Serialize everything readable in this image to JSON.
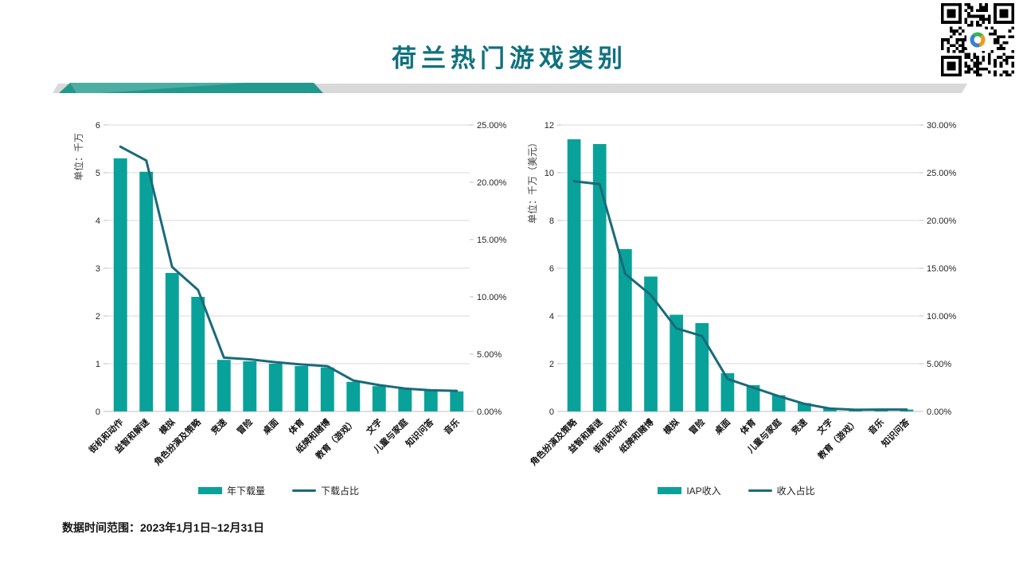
{
  "title": "荷兰热门游戏类别",
  "footer": "数据时间范围：2023年1月1日~12月31日",
  "colors": {
    "bar_teal": "#09a29a",
    "line_teal": "#196a7a",
    "title_teal": "#10717f",
    "band_teal": "#21998c",
    "band_gray": "#d9d9d9",
    "grid_gray": "#d9d9d9",
    "axis_gray": "#bfbfbf",
    "qr_logo_green": "#35b558",
    "qr_logo_orange": "#f0991e",
    "qr_logo_blue": "#3b7fd6"
  },
  "chart_data": [
    {
      "type": "bar",
      "name": "annual-downloads",
      "unit_label": "单位：千万",
      "categories": [
        "街机和动作",
        "益智和解谜",
        "模拟",
        "角色扮演及策略",
        "竞速",
        "冒险",
        "桌面",
        "体育",
        "纸牌和赌博",
        "教育（游戏）",
        "文字",
        "儿童与家庭",
        "知识问答",
        "音乐"
      ],
      "series": [
        {
          "name": "年下载量",
          "type": "bar",
          "axis": "left",
          "values": [
            5.3,
            5.02,
            2.9,
            2.4,
            1.08,
            1.05,
            1.0,
            0.95,
            0.92,
            0.62,
            0.53,
            0.48,
            0.44,
            0.42
          ]
        },
        {
          "name": "下载占比",
          "type": "line",
          "axis": "right",
          "values": [
            23.1,
            21.9,
            12.6,
            10.6,
            4.7,
            4.55,
            4.3,
            4.1,
            3.95,
            2.7,
            2.3,
            2.0,
            1.85,
            1.8
          ]
        }
      ],
      "left_axis": {
        "min": 0,
        "max": 6,
        "step": 1
      },
      "right_axis": {
        "min": 0,
        "max": 25,
        "step": 5,
        "format": "percent"
      },
      "legend_position": "bottom",
      "grid": true
    },
    {
      "type": "bar",
      "name": "iap-revenue",
      "unit_label": "单位：千万（美元）",
      "categories": [
        "角色扮演及策略",
        "益智和解谜",
        "街机和动作",
        "纸牌和赌博",
        "模拟",
        "冒险",
        "桌面",
        "体育",
        "儿童与家庭",
        "竞速",
        "文字",
        "教育（游戏）",
        "音乐",
        "知识问答"
      ],
      "series": [
        {
          "name": "IAP收入",
          "type": "bar",
          "axis": "left",
          "values": [
            11.4,
            11.2,
            6.8,
            5.65,
            4.05,
            3.7,
            1.6,
            1.1,
            0.68,
            0.35,
            0.12,
            0.08,
            0.1,
            0.08
          ]
        },
        {
          "name": "收入占比",
          "type": "line",
          "axis": "right",
          "values": [
            24.1,
            23.8,
            14.4,
            12.2,
            8.7,
            7.9,
            3.4,
            2.5,
            1.6,
            0.8,
            0.3,
            0.18,
            0.2,
            0.2
          ]
        }
      ],
      "left_axis": {
        "min": 0,
        "max": 12,
        "step": 2
      },
      "right_axis": {
        "min": 0,
        "max": 30,
        "step": 5,
        "format": "percent"
      },
      "legend_position": "bottom",
      "grid": true
    }
  ]
}
